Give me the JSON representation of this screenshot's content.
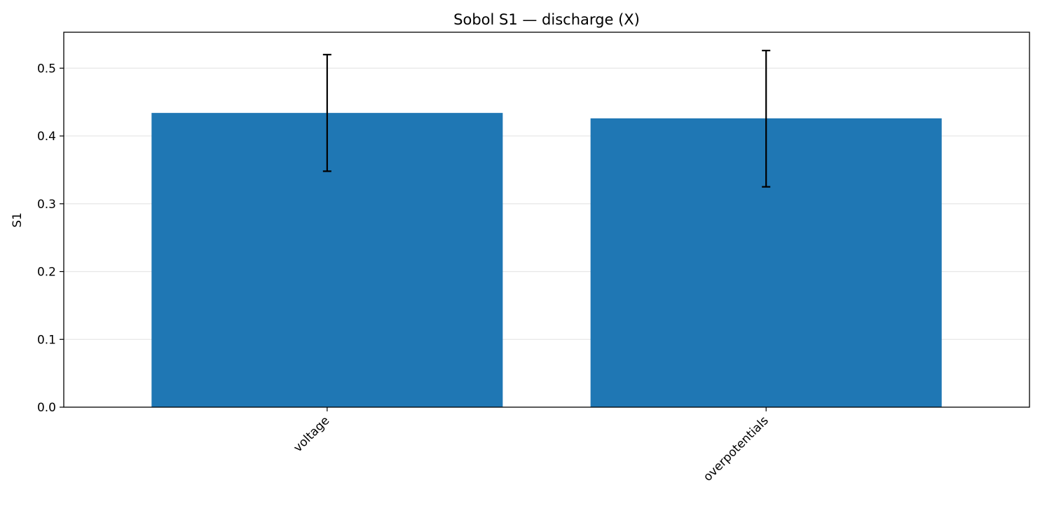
{
  "chart_data": {
    "type": "bar",
    "title": "Sobol S1 — discharge (X)",
    "xlabel": "",
    "ylabel": "S1",
    "categories": [
      "voltage",
      "overpotentials"
    ],
    "values": [
      0.434,
      0.426
    ],
    "error_low": [
      0.348,
      0.325
    ],
    "error_high": [
      0.52,
      0.526
    ],
    "ylim": [
      0,
      0.553
    ],
    "yticks": [
      0.0,
      0.1,
      0.2,
      0.3,
      0.4,
      0.5
    ],
    "ytick_labels": [
      "0.0",
      "0.1",
      "0.2",
      "0.3",
      "0.4",
      "0.5"
    ],
    "grid": "y",
    "x_tick_rotation": 45,
    "colors": {
      "bar": "#1f77b4",
      "error_bar": "#000000",
      "grid": "#e6e6e6",
      "axis": "#000000"
    }
  }
}
